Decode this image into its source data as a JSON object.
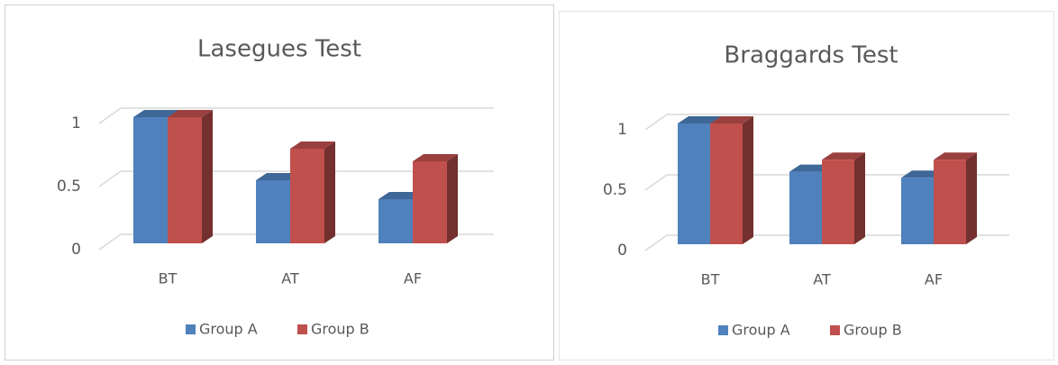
{
  "chart_data": [
    {
      "type": "bar3d",
      "title": "Lasegues Test",
      "categories": [
        "BT",
        "AT",
        "AF"
      ],
      "series": [
        {
          "name": "Group A",
          "color": "#4f81bd",
          "values": [
            1,
            0.5,
            0.35
          ]
        },
        {
          "name": "Group B",
          "color": "#c0504d",
          "values": [
            1,
            0.75,
            0.65
          ]
        }
      ],
      "ylim": [
        0,
        1
      ],
      "yticks": [
        0,
        0.5,
        1
      ],
      "grid": true,
      "legend": "bottom"
    },
    {
      "type": "bar3d",
      "title": "Braggards Test",
      "categories": [
        "BT",
        "AT",
        "AF"
      ],
      "series": [
        {
          "name": "Group A",
          "color": "#4f81bd",
          "values": [
            1,
            0.6,
            0.55
          ]
        },
        {
          "name": "Group B",
          "color": "#c0504d",
          "values": [
            1,
            0.7,
            0.7
          ]
        }
      ],
      "ylim": [
        0,
        1
      ],
      "yticks": [
        0,
        0.5,
        1
      ],
      "grid": true,
      "legend": "bottom"
    }
  ]
}
